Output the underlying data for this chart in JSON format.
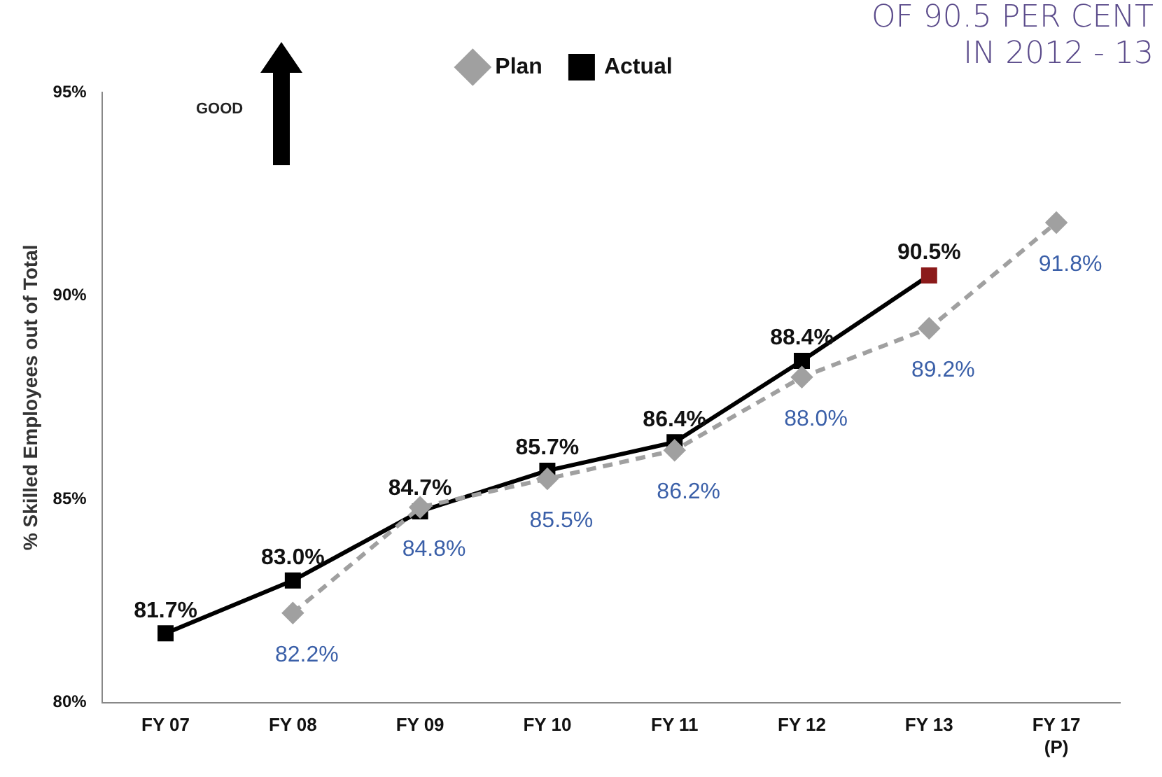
{
  "chart_data": {
    "type": "line",
    "ylabel": "% Skilled Employees out of Total",
    "categories": [
      "FY 07",
      "FY 08",
      "FY 09",
      "FY 10",
      "FY 11",
      "FY 12",
      "FY 13",
      "FY 17\n(P)"
    ],
    "series": [
      {
        "name": "Plan",
        "color": "#a0a0a0",
        "marker": "diamond",
        "line_style": "dashed",
        "values": [
          null,
          82.2,
          84.8,
          85.5,
          86.2,
          88.0,
          89.2,
          91.8
        ],
        "value_labels": [
          null,
          "82.2%",
          "84.8%",
          "85.5%",
          "86.2%",
          "88.0%",
          "89.2%",
          "91.8%"
        ]
      },
      {
        "name": "Actual",
        "color": "#000000",
        "colors": [
          "#000000",
          "#000000",
          "#000000",
          "#000000",
          "#000000",
          "#000000",
          "#8b1a1a",
          "#000000"
        ],
        "marker": "square",
        "line_style": "solid",
        "values": [
          81.7,
          83.0,
          84.7,
          85.7,
          86.4,
          88.4,
          90.5,
          null
        ],
        "value_labels": [
          "81.7%",
          "83.0%",
          "84.7%",
          "85.7%",
          "86.4%",
          "88.4%",
          "90.5%",
          null
        ]
      }
    ],
    "ylim": [
      80,
      95
    ],
    "yticks": [
      {
        "value": 80,
        "label": "80%"
      },
      {
        "value": 85,
        "label": "85%"
      },
      {
        "value": 90,
        "label": "90%"
      },
      {
        "value": 95,
        "label": "95%"
      }
    ],
    "grid": false,
    "legend": "top",
    "annotations": [
      "GOOD",
      "OF 90.5 PER CENT",
      "IN 2012 - 13"
    ]
  }
}
